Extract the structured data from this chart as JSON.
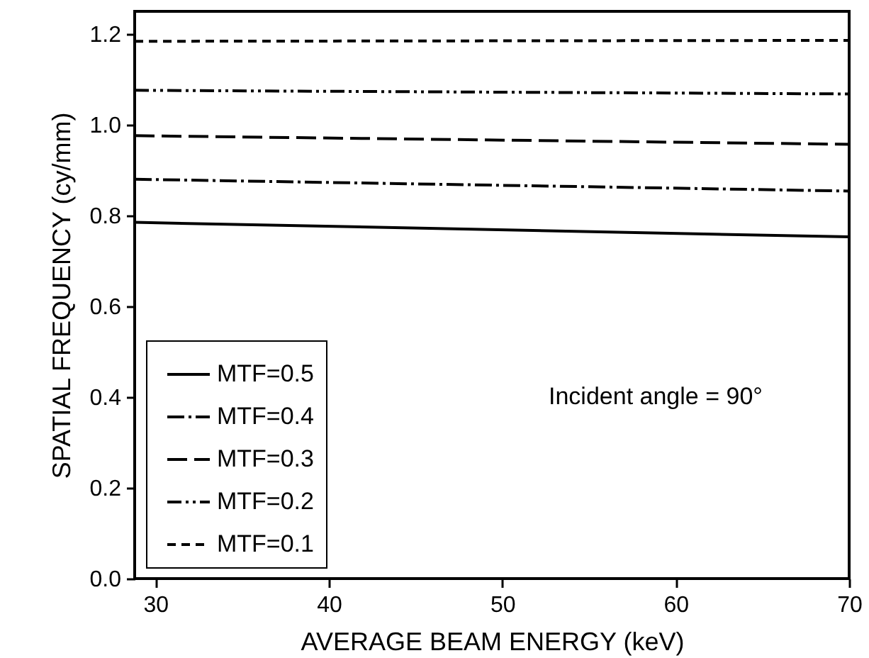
{
  "chart_data": {
    "type": "line",
    "xlabel": "AVERAGE BEAM ENERGY (keV)",
    "ylabel": "SPATIAL FREQUENCY (cy/mm)",
    "xlim": [
      28.8,
      70
    ],
    "xticks": [
      30,
      40,
      50,
      60,
      70
    ],
    "ylim": [
      0,
      1.25
    ],
    "yticks": [
      {
        "value": 0,
        "label": "0.0"
      },
      0.2,
      0.4,
      0.6,
      0.8,
      {
        "value": 1,
        "label": "1.0"
      },
      1.2
    ],
    "x": [
      28.8,
      70
    ],
    "legend": "bottom left",
    "grid": false,
    "marker": "none",
    "annotations": [
      "Incident angle = 90°"
    ],
    "series": [
      {
        "name": "MTF=0.5",
        "color": "#000000",
        "line_style": "solid",
        "values": [
          0.785,
          0.753
        ]
      },
      {
        "name": "MTF=0.4",
        "color": "#000000",
        "line_style": "dashed",
        "values": [
          0.88,
          0.854
        ]
      },
      {
        "name": "MTF=0.3",
        "color": "#000000",
        "line_style": "dashed",
        "values": [
          0.976,
          0.957
        ]
      },
      {
        "name": "MTF=0.2",
        "color": "#000000",
        "line_style": "dashed",
        "values": [
          1.076,
          1.068
        ]
      },
      {
        "name": "MTF=0.1",
        "color": "#000000",
        "line_style": "dashed",
        "values": [
          1.184,
          1.186
        ]
      }
    ]
  }
}
